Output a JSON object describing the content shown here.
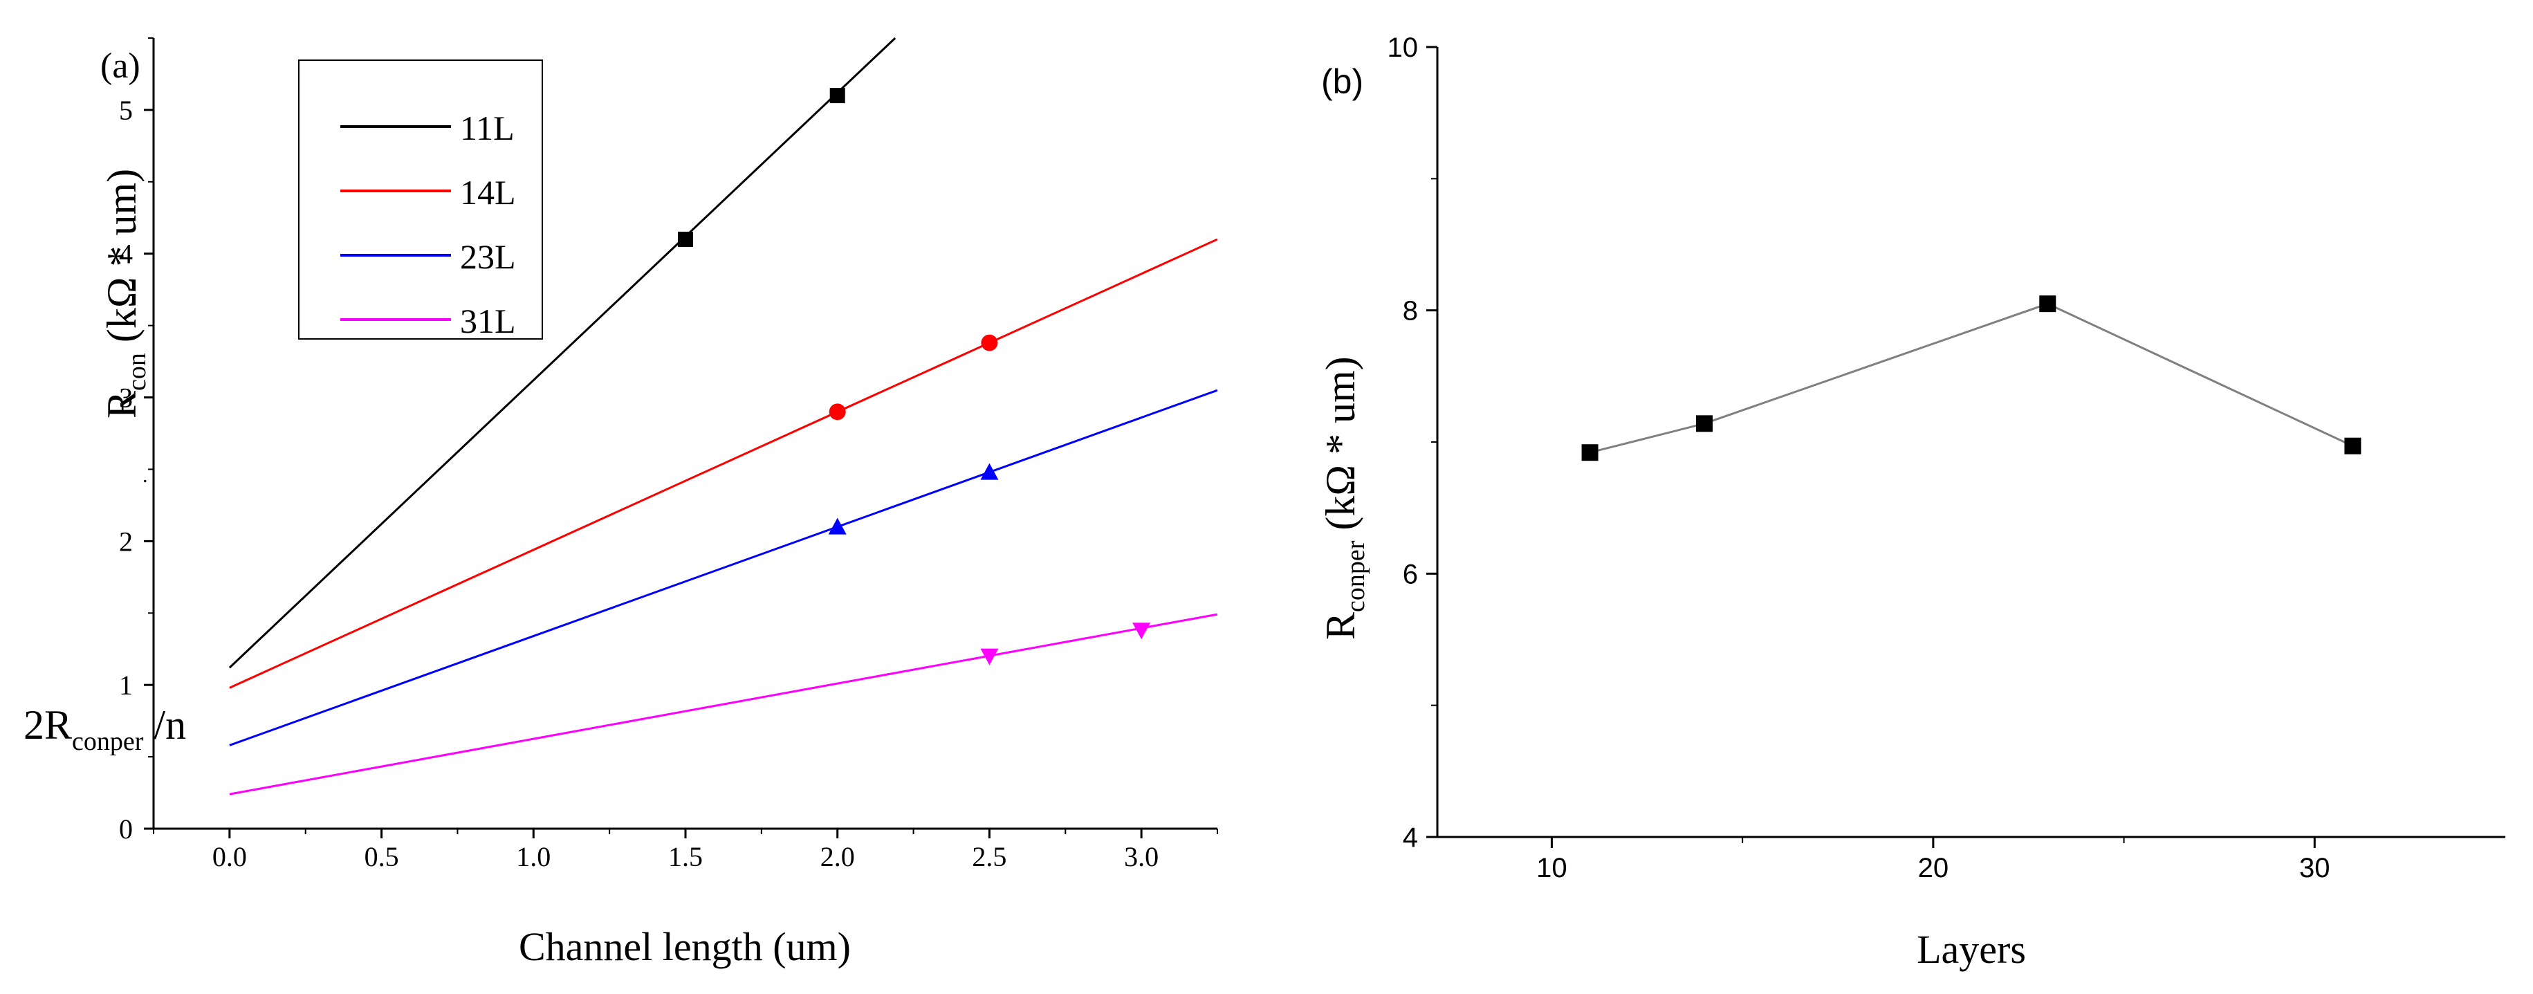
{
  "chart_data": [
    {
      "type": "line",
      "panel_label": "(a)",
      "xlabel": "Channel length (um)",
      "ylabel": {
        "main": "R",
        "sub": "con",
        "rest": " (kΩ * um)"
      },
      "extra_label": {
        "main": "2R",
        "sub": "conper",
        "rest": " /n"
      },
      "stray_mark": ".",
      "xlim": [
        -0.25,
        3.25
      ],
      "ylim": [
        0,
        5.5
      ],
      "x_ticks": [
        0.0,
        0.5,
        1.0,
        1.5,
        2.0,
        2.5,
        3.0
      ],
      "x_tick_labels": [
        "0.0",
        "0.5",
        "1.0",
        "1.5",
        "2.0",
        "2.5",
        "3.0"
      ],
      "y_ticks": [
        0,
        1,
        2,
        3,
        4,
        5
      ],
      "y_tick_labels": [
        "0",
        "1",
        "2",
        "3",
        "4",
        "5"
      ],
      "legend": "top-left",
      "series": [
        {
          "name": "11L",
          "color": "#000000",
          "marker": "square",
          "intercept": 1.12,
          "slope": 2.0,
          "x": [
            1.5,
            2.0
          ],
          "y": [
            4.1,
            5.1
          ]
        },
        {
          "name": "14L",
          "color": "#ff0000",
          "marker": "circle",
          "intercept": 0.98,
          "slope": 0.96,
          "x": [
            2.0,
            2.5
          ],
          "y": [
            2.9,
            3.38
          ]
        },
        {
          "name": "23L",
          "color": "#0000ff",
          "marker": "triangle-up",
          "intercept": 0.58,
          "slope": 0.76,
          "x": [
            2.0,
            2.5
          ],
          "y": [
            2.1,
            2.48
          ]
        },
        {
          "name": "31L",
          "color": "#ff00ff",
          "marker": "triangle-down",
          "intercept": 0.24,
          "slope": 0.385,
          "x": [
            2.5,
            3.0
          ],
          "y": [
            1.2,
            1.38
          ]
        }
      ]
    },
    {
      "type": "line",
      "panel_label": "(b)",
      "xlabel": "Layers",
      "ylabel": {
        "main": "R",
        "sub": "conper",
        "rest": " (kΩ * um)"
      },
      "xlim": [
        7,
        35
      ],
      "ylim": [
        4,
        10
      ],
      "x_ticks": [
        10,
        20,
        30
      ],
      "x_tick_labels": [
        "10",
        "20",
        "30"
      ],
      "x_minor_ticks": [
        15,
        25
      ],
      "y_ticks": [
        4,
        6,
        8,
        10
      ],
      "y_tick_labels": [
        "4",
        "6",
        "8",
        "10"
      ],
      "y_minor_ticks": [
        5,
        7,
        9
      ],
      "series": [
        {
          "name": "Rconper",
          "color": "#000000",
          "line_color": "#808080",
          "marker": "square",
          "x": [
            11,
            14,
            23,
            31
          ],
          "y": [
            6.92,
            7.14,
            8.05,
            6.97
          ]
        }
      ]
    }
  ]
}
